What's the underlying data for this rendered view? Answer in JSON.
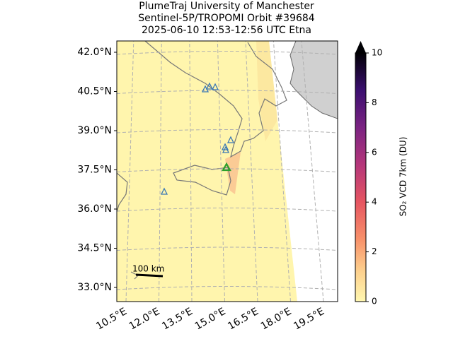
{
  "chart_data": {
    "type": "map",
    "title": [
      "PlumeTraj    University of Manchester",
      "Sentinel-5P/TROPOMI Orbit #39684",
      "2025-06-10   12:53-12:56 UTC   Etna"
    ],
    "lat_ticks": [
      {
        "value": 42.0,
        "label": "42.0°N"
      },
      {
        "value": 40.5,
        "label": "40.5°N"
      },
      {
        "value": 39.0,
        "label": "39.0°N"
      },
      {
        "value": 37.5,
        "label": "37.5°N"
      },
      {
        "value": 36.0,
        "label": "36.0°N"
      },
      {
        "value": 34.5,
        "label": "34.5°N"
      },
      {
        "value": 33.0,
        "label": "33.0°N"
      }
    ],
    "lon_ticks": [
      {
        "value": 10.5,
        "label": "10.5°E"
      },
      {
        "value": 12.0,
        "label": "12.0°E"
      },
      {
        "value": 13.5,
        "label": "13.5°E"
      },
      {
        "value": 15.0,
        "label": "15.0°E"
      },
      {
        "value": 16.5,
        "label": "16.5°E"
      },
      {
        "value": 18.0,
        "label": "18.0°E"
      },
      {
        "value": 19.5,
        "label": "19.5°E"
      }
    ],
    "colorbar": {
      "label": "SO₂ VCD 7km (DU)",
      "ylim": [
        0,
        10
      ],
      "yticks": [
        0,
        2,
        4,
        6,
        8,
        10
      ]
    },
    "scale_bar": "100 km"
  }
}
